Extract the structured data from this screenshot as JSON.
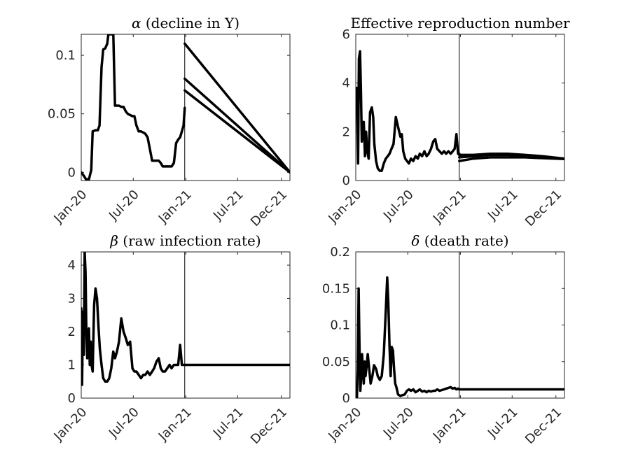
{
  "chart_data": [
    {
      "type": "line",
      "title_symbol": "α",
      "title_text": " (decline in Y)",
      "x_ticks": [
        "Jan-20",
        "Jul-20",
        "Jan-21",
        "Jul-21",
        "Dec-21"
      ],
      "x_tick_dates": [
        "2020-01-01",
        "2020-07-01",
        "2021-01-01",
        "2021-07-01",
        "2021-12-01"
      ],
      "xlim": [
        "2020-01-01",
        "2021-12-31"
      ],
      "ylim": [
        -0.007,
        0.118
      ],
      "y_ticks": [
        0,
        0.05,
        0.1
      ],
      "y_tick_labels": [
        "0",
        "0.05",
        "0.1"
      ],
      "divider_date": "2020-12-28",
      "series": [
        {
          "x": [
            "2020-01-01",
            "2020-01-10",
            "2020-01-18",
            "2020-01-28",
            "2020-02-05",
            "2020-02-10",
            "2020-02-20",
            "2020-02-28",
            "2020-03-05",
            "2020-03-12",
            "2020-03-18",
            "2020-03-25",
            "2020-04-01",
            "2020-04-05",
            "2020-04-12",
            "2020-04-18",
            "2020-04-22",
            "2020-04-28",
            "2020-05-05",
            "2020-05-12",
            "2020-05-20",
            "2020-05-28",
            "2020-06-05",
            "2020-06-12",
            "2020-06-20",
            "2020-06-28",
            "2020-07-05",
            "2020-07-12",
            "2020-07-20",
            "2020-07-28",
            "2020-08-05",
            "2020-08-12",
            "2020-08-20",
            "2020-08-28",
            "2020-09-05",
            "2020-09-12",
            "2020-09-20",
            "2020-09-28",
            "2020-10-05",
            "2020-10-12",
            "2020-10-20",
            "2020-10-28",
            "2020-11-05",
            "2020-11-12",
            "2020-11-20",
            "2020-11-28",
            "2020-12-05",
            "2020-12-12",
            "2020-12-18",
            "2020-12-24",
            "2020-12-28"
          ],
          "y": [
            0,
            -0.003,
            -0.006,
            -0.006,
            0.002,
            0.035,
            0.036,
            0.036,
            0.04,
            0.09,
            0.105,
            0.106,
            0.11,
            0.118,
            0.118,
            0.118,
            0.12,
            0.057,
            0.057,
            0.057,
            0.056,
            0.056,
            0.052,
            0.05,
            0.049,
            0.048,
            0.048,
            0.04,
            0.035,
            0.035,
            0.034,
            0.033,
            0.03,
            0.02,
            0.01,
            0.01,
            0.01,
            0.01,
            0.008,
            0.005,
            0.005,
            0.005,
            0.005,
            0.005,
            0.008,
            0.025,
            0.028,
            0.03,
            0.035,
            0.04,
            0.055
          ]
        },
        {
          "x": [
            "2020-12-28",
            "2021-12-31"
          ],
          "y": [
            0.11,
            0
          ]
        },
        {
          "x": [
            "2020-12-28",
            "2021-12-31"
          ],
          "y": [
            0.08,
            0
          ]
        },
        {
          "x": [
            "2020-12-28",
            "2021-12-31"
          ],
          "y": [
            0.07,
            0
          ]
        }
      ]
    },
    {
      "type": "line",
      "title_symbol": "",
      "title_text": "Effective reproduction number",
      "x_ticks": [
        "Jan-20",
        "Jul-20",
        "Jan-21",
        "Jul-21",
        "Dec-21"
      ],
      "x_tick_dates": [
        "2020-01-01",
        "2020-07-01",
        "2021-01-01",
        "2021-07-01",
        "2021-12-01"
      ],
      "xlim": [
        "2020-01-01",
        "2021-12-31"
      ],
      "ylim": [
        0,
        6
      ],
      "y_ticks": [
        0,
        2,
        4,
        6
      ],
      "y_tick_labels": [
        "0",
        "2",
        "4",
        "6"
      ],
      "divider_date": "2020-12-28",
      "series": [
        {
          "x": [
            "2020-01-01",
            "2020-01-05",
            "2020-01-09",
            "2020-01-12",
            "2020-01-16",
            "2020-01-19",
            "2020-01-22",
            "2020-01-26",
            "2020-01-29",
            "2020-02-02",
            "2020-02-06",
            "2020-02-10",
            "2020-02-15",
            "2020-02-20",
            "2020-02-26",
            "2020-03-02",
            "2020-03-06",
            "2020-03-12",
            "2020-03-18",
            "2020-03-25",
            "2020-04-01",
            "2020-04-08",
            "2020-04-15",
            "2020-04-22",
            "2020-04-28",
            "2020-05-05",
            "2020-05-12",
            "2020-05-20",
            "2020-05-28",
            "2020-06-05",
            "2020-06-10",
            "2020-06-15",
            "2020-06-22",
            "2020-06-28",
            "2020-07-05",
            "2020-07-12",
            "2020-07-20",
            "2020-07-28",
            "2020-08-05",
            "2020-08-12",
            "2020-08-20",
            "2020-08-28",
            "2020-09-05",
            "2020-09-12",
            "2020-09-20",
            "2020-09-28",
            "2020-10-05",
            "2020-10-12",
            "2020-10-20",
            "2020-10-28",
            "2020-11-05",
            "2020-11-12",
            "2020-11-20",
            "2020-11-28",
            "2020-12-05",
            "2020-12-12",
            "2020-12-18",
            "2020-12-24",
            "2020-12-28"
          ],
          "y": [
            2.8,
            3.8,
            0.7,
            5.0,
            5.3,
            3.8,
            1.6,
            2.4,
            2.4,
            1.0,
            2.0,
            1.2,
            0.9,
            2.8,
            3.0,
            2.6,
            1.5,
            0.8,
            0.5,
            0.4,
            0.4,
            0.7,
            0.9,
            1.0,
            1.1,
            1.3,
            1.5,
            2.6,
            2.2,
            1.8,
            1.9,
            1.2,
            0.9,
            0.8,
            0.7,
            0.9,
            0.8,
            1.0,
            0.9,
            1.1,
            1.0,
            1.2,
            1.0,
            1.1,
            1.3,
            1.6,
            1.7,
            1.3,
            1.2,
            1.1,
            1.2,
            1.1,
            1.2,
            1.1,
            1.2,
            1.3,
            1.9,
            1.1,
            1.1
          ]
        },
        {
          "x": [
            "2020-12-28",
            "2021-02-15",
            "2021-04-15",
            "2021-06-15",
            "2021-08-15",
            "2021-10-15",
            "2021-12-31"
          ],
          "y": [
            1.05,
            1.05,
            1.1,
            1.1,
            1.05,
            1.0,
            0.9
          ]
        },
        {
          "x": [
            "2020-12-28",
            "2021-02-15",
            "2021-04-15",
            "2021-06-15",
            "2021-08-15",
            "2021-10-15",
            "2021-12-31"
          ],
          "y": [
            0.95,
            1.0,
            1.05,
            1.05,
            1.0,
            0.95,
            0.9
          ]
        },
        {
          "x": [
            "2020-12-28",
            "2021-02-15",
            "2021-04-15",
            "2021-06-15",
            "2021-08-15",
            "2021-10-15",
            "2021-12-31"
          ],
          "y": [
            0.8,
            0.9,
            0.95,
            0.95,
            0.95,
            0.92,
            0.88
          ]
        }
      ]
    },
    {
      "type": "line",
      "title_symbol": "β",
      "title_text": " (raw infection rate)",
      "x_ticks": [
        "Jan-20",
        "Jul-20",
        "Jan-21",
        "Jul-21",
        "Dec-21"
      ],
      "x_tick_dates": [
        "2020-01-01",
        "2020-07-01",
        "2021-01-01",
        "2021-07-01",
        "2021-12-01"
      ],
      "xlim": [
        "2020-01-01",
        "2021-12-31"
      ],
      "ylim": [
        0,
        4.4
      ],
      "y_ticks": [
        0,
        1,
        2,
        3,
        4
      ],
      "y_tick_labels": [
        "0",
        "1",
        "2",
        "3",
        "4"
      ],
      "divider_date": "2020-12-28",
      "series": [
        {
          "x": [
            "2020-01-01",
            "2020-01-04",
            "2020-01-07",
            "2020-01-10",
            "2020-01-13",
            "2020-01-16",
            "2020-01-19",
            "2020-01-22",
            "2020-01-25",
            "2020-01-28",
            "2020-01-31",
            "2020-02-03",
            "2020-02-06",
            "2020-02-10",
            "2020-02-15",
            "2020-02-20",
            "2020-02-25",
            "2020-03-01",
            "2020-03-06",
            "2020-03-12",
            "2020-03-18",
            "2020-03-25",
            "2020-04-01",
            "2020-04-08",
            "2020-04-15",
            "2020-04-22",
            "2020-04-28",
            "2020-05-05",
            "2020-05-12",
            "2020-05-20",
            "2020-05-28",
            "2020-06-05",
            "2020-06-12",
            "2020-06-20",
            "2020-06-28",
            "2020-07-05",
            "2020-07-12",
            "2020-07-20",
            "2020-07-28",
            "2020-08-05",
            "2020-08-12",
            "2020-08-20",
            "2020-08-28",
            "2020-09-05",
            "2020-09-12",
            "2020-09-20",
            "2020-09-28",
            "2020-10-05",
            "2020-10-12",
            "2020-10-20",
            "2020-10-28",
            "2020-11-05",
            "2020-11-12",
            "2020-11-20",
            "2020-11-28",
            "2020-12-05",
            "2020-12-12",
            "2020-12-18",
            "2020-12-24",
            "2020-12-28"
          ],
          "y": [
            2.7,
            0.4,
            2.6,
            1.3,
            4.4,
            3.8,
            2.0,
            1.2,
            1.9,
            2.1,
            1.0,
            1.7,
            1.0,
            0.8,
            2.8,
            3.3,
            3.0,
            2.2,
            1.5,
            1.0,
            0.6,
            0.5,
            0.5,
            0.6,
            0.9,
            1.4,
            1.2,
            1.4,
            1.7,
            2.4,
            2.0,
            1.8,
            1.6,
            1.7,
            0.9,
            0.8,
            0.8,
            0.7,
            0.6,
            0.7,
            0.7,
            0.8,
            0.7,
            0.8,
            0.9,
            1.1,
            1.2,
            0.9,
            0.8,
            0.8,
            0.9,
            1.0,
            0.9,
            1.0,
            1.0,
            1.0,
            1.6,
            1.0,
            1.0,
            1.0
          ]
        },
        {
          "x": [
            "2020-12-28",
            "2021-12-31"
          ],
          "y": [
            1.0,
            1.0
          ]
        }
      ]
    },
    {
      "type": "line",
      "title_symbol": "δ",
      "title_text": " (death rate)",
      "x_ticks": [
        "Jan-20",
        "Jul-20",
        "Jan-21",
        "Jul-21",
        "Dec-21"
      ],
      "x_tick_dates": [
        "2020-01-01",
        "2020-07-01",
        "2021-01-01",
        "2021-07-01",
        "2021-12-01"
      ],
      "xlim": [
        "2020-01-01",
        "2021-12-31"
      ],
      "ylim": [
        0,
        0.2
      ],
      "y_ticks": [
        0,
        0.05,
        0.1,
        0.15,
        0.2
      ],
      "y_tick_labels": [
        "0",
        "0.05",
        "0.1",
        "0.15",
        "0.2"
      ],
      "divider_date": "2020-12-28",
      "series": [
        {
          "x": [
            "2020-01-01",
            "2020-01-05",
            "2020-01-08",
            "2020-01-11",
            "2020-01-14",
            "2020-01-17",
            "2020-01-20",
            "2020-01-23",
            "2020-01-26",
            "2020-01-29",
            "2020-02-01",
            "2020-02-04",
            "2020-02-07",
            "2020-02-12",
            "2020-02-17",
            "2020-02-22",
            "2020-02-28",
            "2020-03-05",
            "2020-03-12",
            "2020-03-18",
            "2020-03-25",
            "2020-04-01",
            "2020-04-08",
            "2020-04-15",
            "2020-04-20",
            "2020-04-24",
            "2020-04-28",
            "2020-05-02",
            "2020-05-06",
            "2020-05-10",
            "2020-05-14",
            "2020-05-18",
            "2020-05-22",
            "2020-05-28",
            "2020-06-05",
            "2020-06-12",
            "2020-06-20",
            "2020-06-28",
            "2020-07-05",
            "2020-07-12",
            "2020-07-20",
            "2020-07-28",
            "2020-08-05",
            "2020-08-12",
            "2020-08-20",
            "2020-08-28",
            "2020-09-05",
            "2020-09-12",
            "2020-09-20",
            "2020-09-28",
            "2020-10-05",
            "2020-10-12",
            "2020-10-20",
            "2020-10-28",
            "2020-11-05",
            "2020-11-12",
            "2020-11-20",
            "2020-11-28",
            "2020-12-05",
            "2020-12-12",
            "2020-12-18",
            "2020-12-24",
            "2020-12-28"
          ],
          "y": [
            0,
            0,
            0.04,
            0.15,
            0.07,
            0.01,
            0.03,
            0.06,
            0.04,
            0.02,
            0.05,
            0.03,
            0.04,
            0.06,
            0.04,
            0.02,
            0.03,
            0.045,
            0.04,
            0.03,
            0.025,
            0.03,
            0.06,
            0.12,
            0.165,
            0.13,
            0.07,
            0.03,
            0.07,
            0.065,
            0.04,
            0.02,
            0.015,
            0.005,
            0.003,
            0.004,
            0.005,
            0.01,
            0.012,
            0.01,
            0.012,
            0.008,
            0.01,
            0.012,
            0.009,
            0.01,
            0.008,
            0.01,
            0.009,
            0.01,
            0.01,
            0.012,
            0.01,
            0.011,
            0.012,
            0.013,
            0.014,
            0.015,
            0.013,
            0.014,
            0.012,
            0.013,
            0.012
          ]
        },
        {
          "x": [
            "2020-12-28",
            "2021-12-31"
          ],
          "y": [
            0.012,
            0.012
          ]
        }
      ]
    }
  ]
}
